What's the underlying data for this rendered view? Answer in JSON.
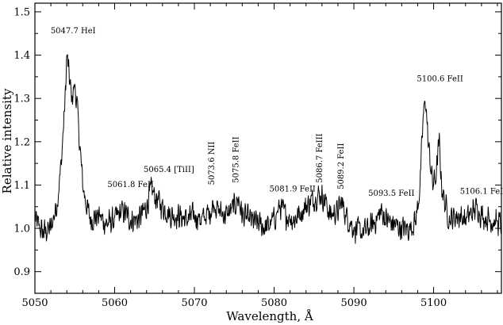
{
  "chart_data": {
    "type": "line",
    "title": "",
    "xlabel": "Wavelength, Å",
    "ylabel": "Relative intensity",
    "xlim": [
      5050,
      5108.5
    ],
    "ylim": [
      0.85,
      1.52
    ],
    "grid": false,
    "line_color": "#000000",
    "x_ticks": [
      5050,
      5060,
      5070,
      5080,
      5090,
      5100
    ],
    "x_tick_labels": [
      "5050",
      "5060",
      "5070",
      "5080",
      "5090",
      "5100"
    ],
    "y_ticks": [
      0.9,
      1.0,
      1.1,
      1.2,
      1.3,
      1.4,
      1.5
    ],
    "y_tick_labels": [
      "0.9",
      "1.0",
      "1.1",
      "1.2",
      "1.3",
      "1.4",
      "1.5"
    ],
    "x_minor_step": 2,
    "y_minor_step": 0.05,
    "spectrum_anchors": {
      "x": [
        5050.0,
        5051.0,
        5052.0,
        5052.8,
        5053.3,
        5053.8,
        5054.0,
        5054.3,
        5054.6,
        5055.0,
        5055.3,
        5055.6,
        5056.0,
        5056.5,
        5057.0,
        5058.0,
        5059.0,
        5060.0,
        5061.0,
        5062.0,
        5063.0,
        5064.0,
        5064.6,
        5065.2,
        5066.0,
        5067.0,
        5068.0,
        5069.0,
        5070.0,
        5071.0,
        5072.0,
        5072.5,
        5073.0,
        5074.0,
        5075.0,
        5075.5,
        5076.0,
        5077.0,
        5078.0,
        5079.0,
        5080.0,
        5080.7,
        5081.5,
        5082.5,
        5083.0,
        5084.0,
        5085.0,
        5085.8,
        5086.5,
        5087.0,
        5088.0,
        5088.5,
        5089.0,
        5090.0,
        5091.0,
        5092.0,
        5092.8,
        5093.5,
        5094.0,
        5095.0,
        5096.0,
        5097.0,
        5097.8,
        5098.3,
        5098.7,
        5099.0,
        5099.3,
        5099.6,
        5099.9,
        5100.3,
        5100.7,
        5101.0,
        5101.5,
        5102.0,
        5103.0,
        5104.0,
        5105.0,
        5105.5,
        5106.0,
        5107.0,
        5108.5
      ],
      "y": [
        1.02,
        0.99,
        1.0,
        1.06,
        1.15,
        1.3,
        1.4,
        1.35,
        1.3,
        1.33,
        1.28,
        1.2,
        1.1,
        1.05,
        1.02,
        1.03,
        1.01,
        1.02,
        1.04,
        1.02,
        1.02,
        1.05,
        1.09,
        1.07,
        1.05,
        1.03,
        1.03,
        1.02,
        1.03,
        1.02,
        1.04,
        1.06,
        1.04,
        1.03,
        1.05,
        1.07,
        1.03,
        1.02,
        1.01,
        1.0,
        1.02,
        1.05,
        1.03,
        1.02,
        1.03,
        1.05,
        1.07,
        1.08,
        1.06,
        1.03,
        1.04,
        1.06,
        1.03,
        1.0,
        0.99,
        1.0,
        1.02,
        1.04,
        1.02,
        1.01,
        1.0,
        1.0,
        1.02,
        1.1,
        1.26,
        1.3,
        1.2,
        1.15,
        1.1,
        1.12,
        1.2,
        1.1,
        1.05,
        1.02,
        1.03,
        1.02,
        1.04,
        1.05,
        1.03,
        1.02,
        1.01
      ],
      "noise_amplitude": 0.022
    },
    "annotations": [
      {
        "text": "5047.7 HeI",
        "x": 5054.8,
        "y": 1.45,
        "rotate": false
      },
      {
        "text": "5061.8 FeII",
        "x": 5062.0,
        "y": 1.095,
        "rotate": false
      },
      {
        "text": "5065.4  [TiII]",
        "x": 5066.8,
        "y": 1.13,
        "rotate": false
      },
      {
        "text": "5073.6 NII",
        "x": 5072.5,
        "y": 1.1,
        "rotate": true
      },
      {
        "text": "5075.8 FeII",
        "x": 5075.5,
        "y": 1.105,
        "rotate": true
      },
      {
        "text": "5081.9 FeII",
        "x": 5082.3,
        "y": 1.085,
        "rotate": false
      },
      {
        "text": "5086.7 FeIII",
        "x": 5086.0,
        "y": 1.105,
        "rotate": true
      },
      {
        "text": "5089.2 FeII",
        "x": 5088.7,
        "y": 1.09,
        "rotate": true
      },
      {
        "text": "5093.5 FeII",
        "x": 5094.7,
        "y": 1.075,
        "rotate": false
      },
      {
        "text": "5100.6 FeII",
        "x": 5100.8,
        "y": 1.34,
        "rotate": false
      },
      {
        "text": "5106.1 FeII",
        "x": 5106.2,
        "y": 1.08,
        "rotate": false
      }
    ]
  }
}
